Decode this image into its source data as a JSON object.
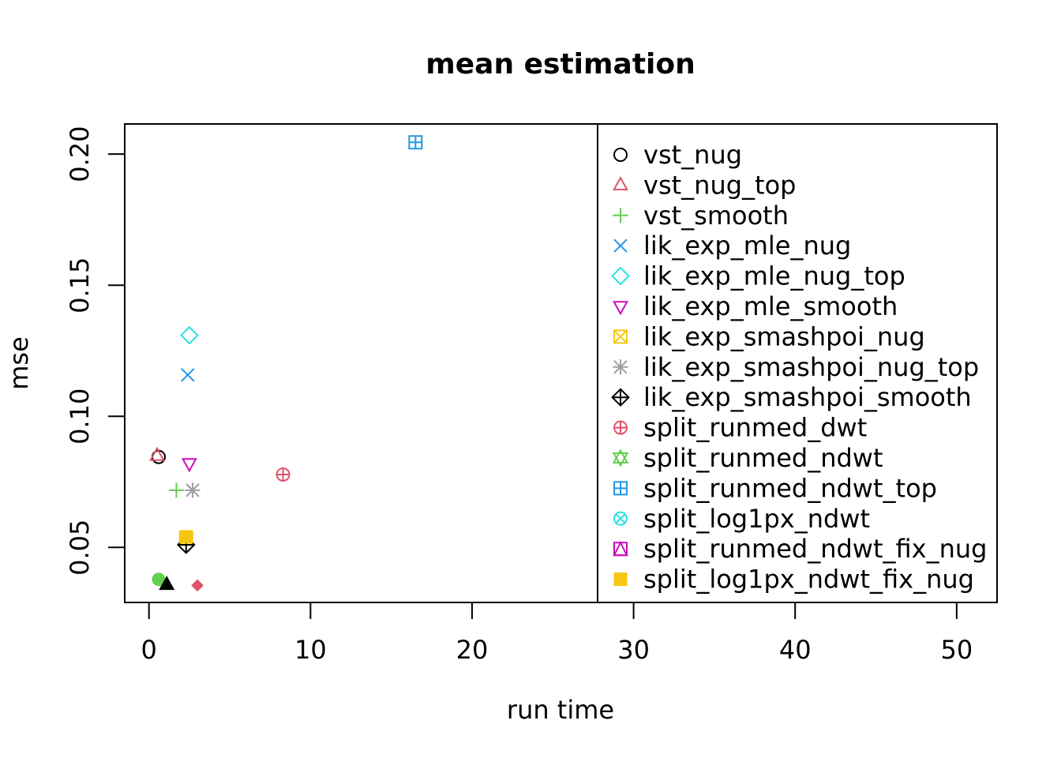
{
  "chart_data": {
    "type": "scatter",
    "title": "mean estimation",
    "xlabel": "run time",
    "ylabel": "mse",
    "xlim": [
      -1.5,
      52.5
    ],
    "ylim": [
      0.029,
      0.2115
    ],
    "xticks": [
      0,
      10,
      20,
      30,
      40,
      50
    ],
    "yticks": [
      0.05,
      0.1,
      0.15,
      0.2
    ],
    "xtick_labels": [
      "0",
      "10",
      "20",
      "30",
      "40",
      "50"
    ],
    "ytick_labels": [
      "0.05",
      "0.10",
      "0.15",
      "0.20"
    ],
    "grid": false,
    "legend_position": "top-right",
    "series": [
      {
        "name": "vst_nug",
        "color": "#000000",
        "symbol": "circle-open",
        "x": 0.6,
        "y": 0.0845
      },
      {
        "name": "vst_nug_top",
        "color": "#DF536B",
        "symbol": "triangle-up-open",
        "x": 0.5,
        "y": 0.085
      },
      {
        "name": "vst_smooth",
        "color": "#61D04F",
        "symbol": "plus",
        "x": 1.7,
        "y": 0.0718
      },
      {
        "name": "lik_exp_mle_nug",
        "color": "#2297E6",
        "symbol": "cross",
        "x": 2.4,
        "y": 0.1158
      },
      {
        "name": "lik_exp_mle_nug_top",
        "color": "#28E2E5",
        "symbol": "diamond-open",
        "x": 2.5,
        "y": 0.1309
      },
      {
        "name": "lik_exp_mle_smooth",
        "color": "#CD0BBC",
        "symbol": "triangle-down-open",
        "x": 2.5,
        "y": 0.082
      },
      {
        "name": "lik_exp_smashpoi_nug",
        "color": "#F5C710",
        "symbol": "square-cross",
        "x": 2.3,
        "y": 0.0533
      },
      {
        "name": "lik_exp_smashpoi_nug_top",
        "color": "#9E9E9E",
        "symbol": "asterisk",
        "x": 2.7,
        "y": 0.0718
      },
      {
        "name": "lik_exp_smashpoi_smooth",
        "color": "#000000",
        "symbol": "diamond-plus",
        "x": 2.3,
        "y": 0.051
      },
      {
        "name": "split_runmed_dwt",
        "color": "#DF536B",
        "symbol": "circle-plus",
        "x": 8.3,
        "y": 0.0778
      },
      {
        "name": "split_runmed_ndwt",
        "color": "#61D04F",
        "symbol": "hexagram",
        "x": null,
        "y": null
      },
      {
        "name": "split_runmed_ndwt_top",
        "color": "#2297E6",
        "symbol": "square-plus",
        "x": 16.5,
        "y": 0.2045
      },
      {
        "name": "split_log1px_ndwt",
        "color": "#28E2E5",
        "symbol": "circle-cross",
        "x": null,
        "y": null
      },
      {
        "name": "split_runmed_ndwt_fix_nug",
        "color": "#CD0BBC",
        "symbol": "square-triangle",
        "x": null,
        "y": null
      },
      {
        "name": "split_log1px_ndwt_fix_nug",
        "color": "#F5C710",
        "symbol": "square-filled",
        "x": 2.3,
        "y": 0.054
      },
      {
        "name": "",
        "color": "#61D04F",
        "symbol": "circle-filled",
        "x": 0.6,
        "y": 0.0378
      },
      {
        "name": "",
        "color": "#000000",
        "symbol": "triangle-filled",
        "x": 1.1,
        "y": 0.0358
      },
      {
        "name": "",
        "color": "#DF536B",
        "symbol": "diamond-filled",
        "x": 3.0,
        "y": 0.0355
      }
    ]
  }
}
